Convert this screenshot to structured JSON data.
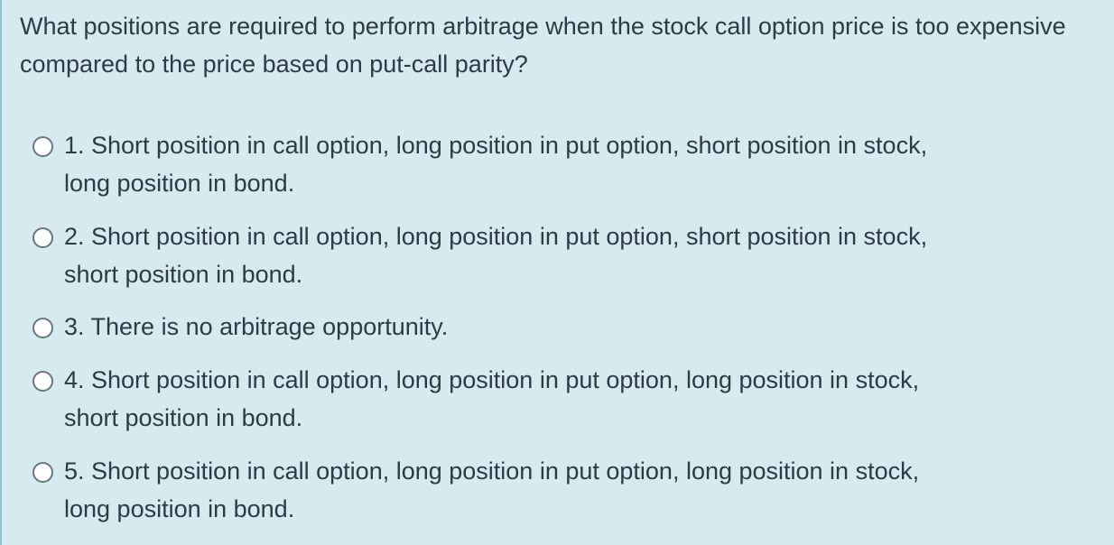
{
  "question": {
    "text": "What positions are required to perform arbitrage when the stock call option price is too expensive compared to the price based on put-call parity?"
  },
  "answers": [
    {
      "line1": "1. Short position in call option, long position in put option, short position in stock,",
      "line2": "long position in bond.",
      "selected": false
    },
    {
      "line1": "2. Short position in call option, long position in put option, short position in stock,",
      "line2": "short position in bond.",
      "selected": false
    },
    {
      "line1": "3. There is no arbitrage opportunity.",
      "selected": false
    },
    {
      "line1": "4. Short position in call option, long position in put option, long position in stock,",
      "line2": "short position in bond.",
      "selected": false
    },
    {
      "line1": "5. Short position in call option, long position in put option, long position in stock,",
      "line2": "long position in bond.",
      "selected": false
    }
  ]
}
